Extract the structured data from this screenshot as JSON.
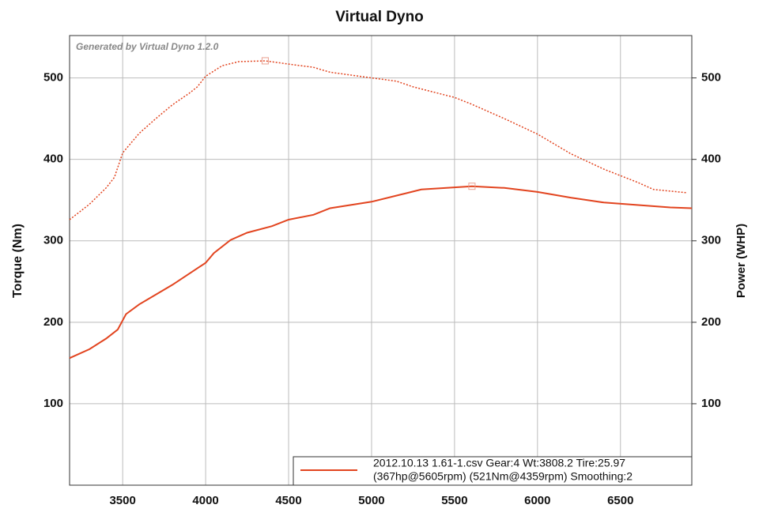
{
  "chart_data": {
    "type": "line",
    "title": "Virtual Dyno",
    "annotation": "Generated by Virtual Dyno 1.2.0",
    "y_label": "Torque (Nm)",
    "y2_label": "Power (WHP)",
    "legend": [
      "2012.10.13 1.61-1.csv Gear:4 Wt:3808.2 Tire:25.97",
      "(367hp@5605rpm) (521Nm@4359rpm) Smoothing:2"
    ],
    "xlim": [
      3180,
      6930
    ],
    "xticks": [
      3500,
      4000,
      4500,
      5000,
      5500,
      6000,
      6500
    ],
    "ylim": [
      0,
      552
    ],
    "yticks": [
      100,
      200,
      300,
      400,
      500
    ],
    "y2lim": [
      0,
      552
    ],
    "y2ticks": [
      100,
      200,
      300,
      400,
      500
    ],
    "grid": true,
    "series": [
      {
        "color": "#e2441f",
        "dash": "dotted",
        "peak_index": 13,
        "x": [
          3180,
          3300,
          3400,
          3450,
          3500,
          3600,
          3700,
          3800,
          3900,
          3950,
          4000,
          4100,
          4200,
          4359,
          4500,
          4650,
          4750,
          5000,
          5150,
          5250,
          5500,
          5600,
          5800,
          6000,
          6200,
          6400,
          6600,
          6700,
          6900
        ],
        "values": [
          326,
          345,
          365,
          378,
          408,
          432,
          450,
          467,
          481,
          489,
          502,
          515,
          520,
          521,
          517,
          513,
          507,
          500,
          496,
          489,
          476,
          468,
          450,
          431,
          407,
          388,
          372,
          363,
          359
        ]
      },
      {
        "color": "#e2441f",
        "dash": "solid",
        "axis": "y2",
        "peak_index": 18,
        "x": [
          3180,
          3300,
          3400,
          3470,
          3520,
          3600,
          3800,
          4000,
          4050,
          4150,
          4250,
          4400,
          4500,
          4650,
          4750,
          5000,
          5200,
          5300,
          5605,
          5800,
          6000,
          6200,
          6400,
          6600,
          6800,
          6930
        ],
        "values": [
          156,
          167,
          180,
          191,
          210,
          222,
          246,
          273,
          285,
          301,
          310,
          318,
          326,
          332,
          340,
          348,
          358,
          363,
          367,
          365,
          360,
          353,
          347,
          344,
          341,
          340
        ]
      }
    ]
  }
}
